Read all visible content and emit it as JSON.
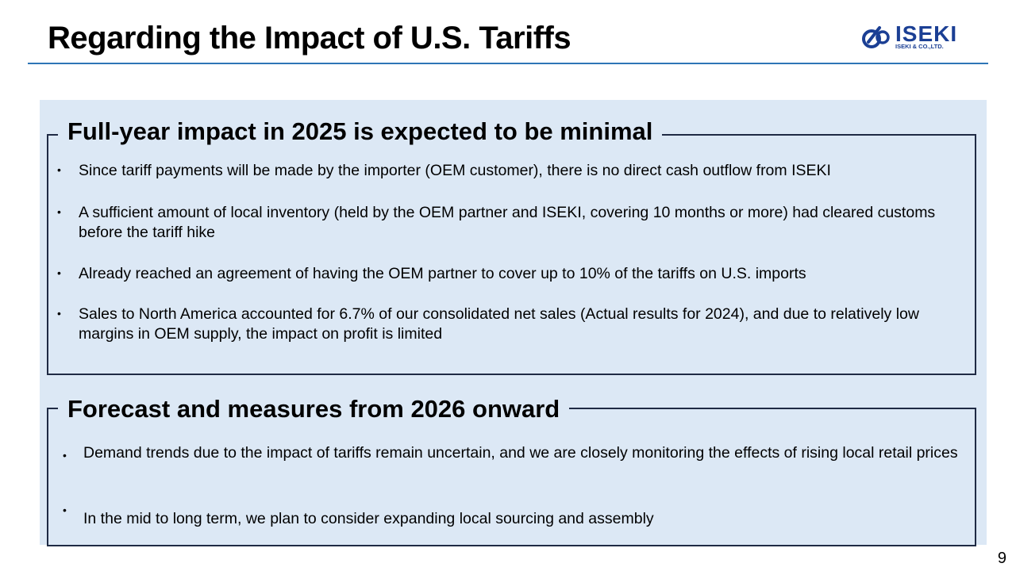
{
  "header": {
    "title": "Regarding the Impact of U.S. Tariffs"
  },
  "logo": {
    "name": "ISEKI",
    "subtitle": "ISEKI & CO.,LTD.",
    "color": "#1b3f94"
  },
  "section1": {
    "heading": "Full-year impact in 2025 is expected to be minimal",
    "bullets": [
      "Since tariff payments will be made by the importer (OEM customer), there is no direct cash outflow from ISEKI",
      "A sufficient amount of local inventory (held by the OEM partner and ISEKI, covering 10 months or more) had cleared customs before the tariff hike",
      "Already reached an agreement of having the OEM partner to cover up to 10% of the tariffs on U.S. imports",
      "Sales to North America accounted for 6.7% of our consolidated net sales (Actual results for 2024), and due to relatively low margins in OEM supply, the impact on profit is limited"
    ]
  },
  "section2": {
    "heading": "Forecast and measures from 2026 onward",
    "bullets": [
      "Demand trends due to the impact of tariffs remain uncertain, and we are closely monitoring the effects of rising local retail prices",
      "In the mid to long term, we plan to consider expanding local sourcing and assembly"
    ]
  },
  "footer": {
    "page_number": "9"
  },
  "colors": {
    "title_rule": "#2e75b6",
    "panel_background": "#dce8f5",
    "box_border": "#1f2a44"
  }
}
